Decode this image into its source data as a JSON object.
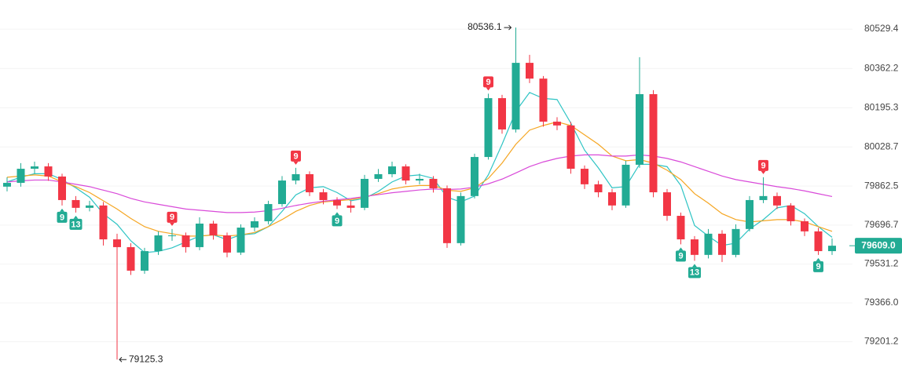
{
  "chart_data": {
    "type": "candlestick",
    "up_color": "#22ab94",
    "down_color": "#f23645",
    "open": [
      79860,
      79876,
      79936,
      79946,
      79903,
      79803,
      79770,
      79780,
      79636,
      79603,
      79503,
      79586,
      79653,
      79653,
      79603,
      79703,
      79653,
      79580,
      79686,
      79713,
      79786,
      79886,
      79913,
      79836,
      79803,
      79780,
      79770,
      79893,
      79913,
      79946,
      79886,
      79893,
      79853,
      79620,
      79820,
      79986,
      80236,
      80103,
      80386,
      80319,
      80136,
      80120,
      79936,
      79870,
      79836,
      79780,
      79953,
      80253,
      79836,
      79736,
      79636,
      79570,
      79660,
      79570,
      79680,
      79803,
      79820,
      79780,
      79713,
      79670,
      79586
    ],
    "high": [
      79900,
      79960,
      79966,
      79960,
      79915,
      79820,
      79800,
      79795,
      79660,
      79620,
      79600,
      79670,
      79680,
      79665,
      79730,
      79715,
      79665,
      79700,
      79730,
      79800,
      79905,
      79940,
      79925,
      79850,
      79815,
      79800,
      79910,
      79935,
      79966,
      79955,
      79915,
      79905,
      79865,
      79835,
      80000,
      80255,
      80250,
      80536.1,
      80420,
      80330,
      80155,
      80135,
      79950,
      79885,
      79850,
      79970,
      80410,
      80270,
      79850,
      79750,
      79650,
      79680,
      79675,
      79700,
      79820,
      79900,
      79835,
      79790,
      79725,
      79685,
      79640
    ],
    "low": [
      79840,
      79860,
      79915,
      79885,
      79780,
      79750,
      79755,
      79610,
      79125.3,
      79485,
      79490,
      79570,
      79630,
      79580,
      79590,
      79635,
      79560,
      79570,
      79670,
      79700,
      79775,
      79870,
      79820,
      79785,
      79765,
      79750,
      79760,
      79880,
      79900,
      79870,
      79870,
      79835,
      79600,
      79610,
      79810,
      79975,
      80085,
      80090,
      80300,
      80115,
      80100,
      79915,
      79850,
      79815,
      79760,
      79770,
      79940,
      79815,
      79715,
      79615,
      79545,
      79555,
      79540,
      79560,
      79670,
      79790,
      79765,
      79695,
      79650,
      79570,
      79570
    ],
    "close": [
      79876,
      79936,
      79946,
      79903,
      79803,
      79770,
      79780,
      79636,
      79603,
      79503,
      79586,
      79653,
      79653,
      79603,
      79703,
      79653,
      79580,
      79686,
      79713,
      79786,
      79886,
      79913,
      79836,
      79803,
      79780,
      79770,
      79893,
      79913,
      79946,
      79886,
      79893,
      79853,
      79620,
      79820,
      79986,
      80236,
      80103,
      80386,
      80319,
      80136,
      80120,
      79936,
      79870,
      79836,
      79780,
      79953,
      80253,
      79836,
      79736,
      79636,
      79570,
      79660,
      79570,
      79680,
      79803,
      79820,
      79780,
      79713,
      79670,
      79586,
      79609
    ],
    "lines": [
      {
        "color": "#2ec4c4",
        "values": [
          79880,
          79900,
          79915,
          79915,
          79890,
          79855,
          79815,
          79745,
          79700,
          79630,
          79580,
          79585,
          79600,
          79625,
          79650,
          79655,
          79635,
          79655,
          79660,
          79690,
          79755,
          79825,
          79855,
          79860,
          79835,
          79800,
          79810,
          79840,
          79880,
          79905,
          79910,
          79895,
          79815,
          79795,
          79820,
          79910,
          80040,
          80180,
          80260,
          80235,
          80230,
          80130,
          80015,
          79940,
          79855,
          79860,
          79955,
          79955,
          79945,
          79865,
          79695,
          79650,
          79610,
          79620,
          79680,
          79720,
          79770,
          79780,
          79745,
          79690,
          79645
        ]
      },
      {
        "color": "#f5a623",
        "values": [
          79900,
          79905,
          79910,
          79905,
          79880,
          79860,
          79835,
          79800,
          79765,
          79725,
          79690,
          79670,
          79660,
          79650,
          79650,
          79655,
          79650,
          79655,
          79665,
          79690,
          79720,
          79755,
          79780,
          79795,
          79800,
          79805,
          79815,
          79830,
          79850,
          79860,
          79865,
          79865,
          79845,
          79840,
          79855,
          79895,
          79960,
          80040,
          80100,
          80120,
          80135,
          80120,
          80080,
          80040,
          79990,
          79970,
          79975,
          79960,
          79930,
          79890,
          79830,
          79790,
          79745,
          79720,
          79710,
          79715,
          79720,
          79720,
          79710,
          79690,
          79670
        ]
      },
      {
        "color": "#d94ad9",
        "values": [
          79880,
          79885,
          79888,
          79888,
          79880,
          79870,
          79860,
          79845,
          79830,
          79810,
          79795,
          79785,
          79775,
          79765,
          79760,
          79755,
          79750,
          79750,
          79752,
          79758,
          79768,
          79780,
          79790,
          79798,
          79804,
          79810,
          79818,
          79826,
          79834,
          79840,
          79846,
          79850,
          79848,
          79850,
          79858,
          79872,
          79892,
          79918,
          79945,
          79965,
          79980,
          79990,
          79995,
          79995,
          79990,
          79990,
          79995,
          79990,
          79980,
          79965,
          79945,
          79925,
          79905,
          79890,
          79880,
          79870,
          79860,
          79852,
          79842,
          79830,
          79818
        ]
      }
    ],
    "markers": [
      {
        "candle": 4,
        "label": "9",
        "position": "below"
      },
      {
        "candle": 5,
        "label": "13",
        "position": "below"
      },
      {
        "candle": 12,
        "label": "9",
        "position": "above"
      },
      {
        "candle": 21,
        "label": "9",
        "position": "above"
      },
      {
        "candle": 24,
        "label": "9",
        "position": "below"
      },
      {
        "candle": 35,
        "label": "9",
        "position": "above"
      },
      {
        "candle": 49,
        "label": "9",
        "position": "below"
      },
      {
        "candle": 50,
        "label": "13",
        "position": "below"
      },
      {
        "candle": 55,
        "label": "9",
        "position": "above"
      },
      {
        "candle": 59,
        "label": "9",
        "position": "below"
      }
    ],
    "max_price": 80536.1,
    "min_price": 79125.3,
    "last_price": {
      "value": 79609,
      "label": "79609.0"
    },
    "ylim": [
      78996,
      80653
    ],
    "yticks": [
      80529.4,
      80362.2,
      80195.3,
      80028.7,
      79862.5,
      79696.7,
      79531.2,
      {
        "value": 79366,
        "label": "79366.0"
      },
      79201.2
    ],
    "grid": true
  }
}
